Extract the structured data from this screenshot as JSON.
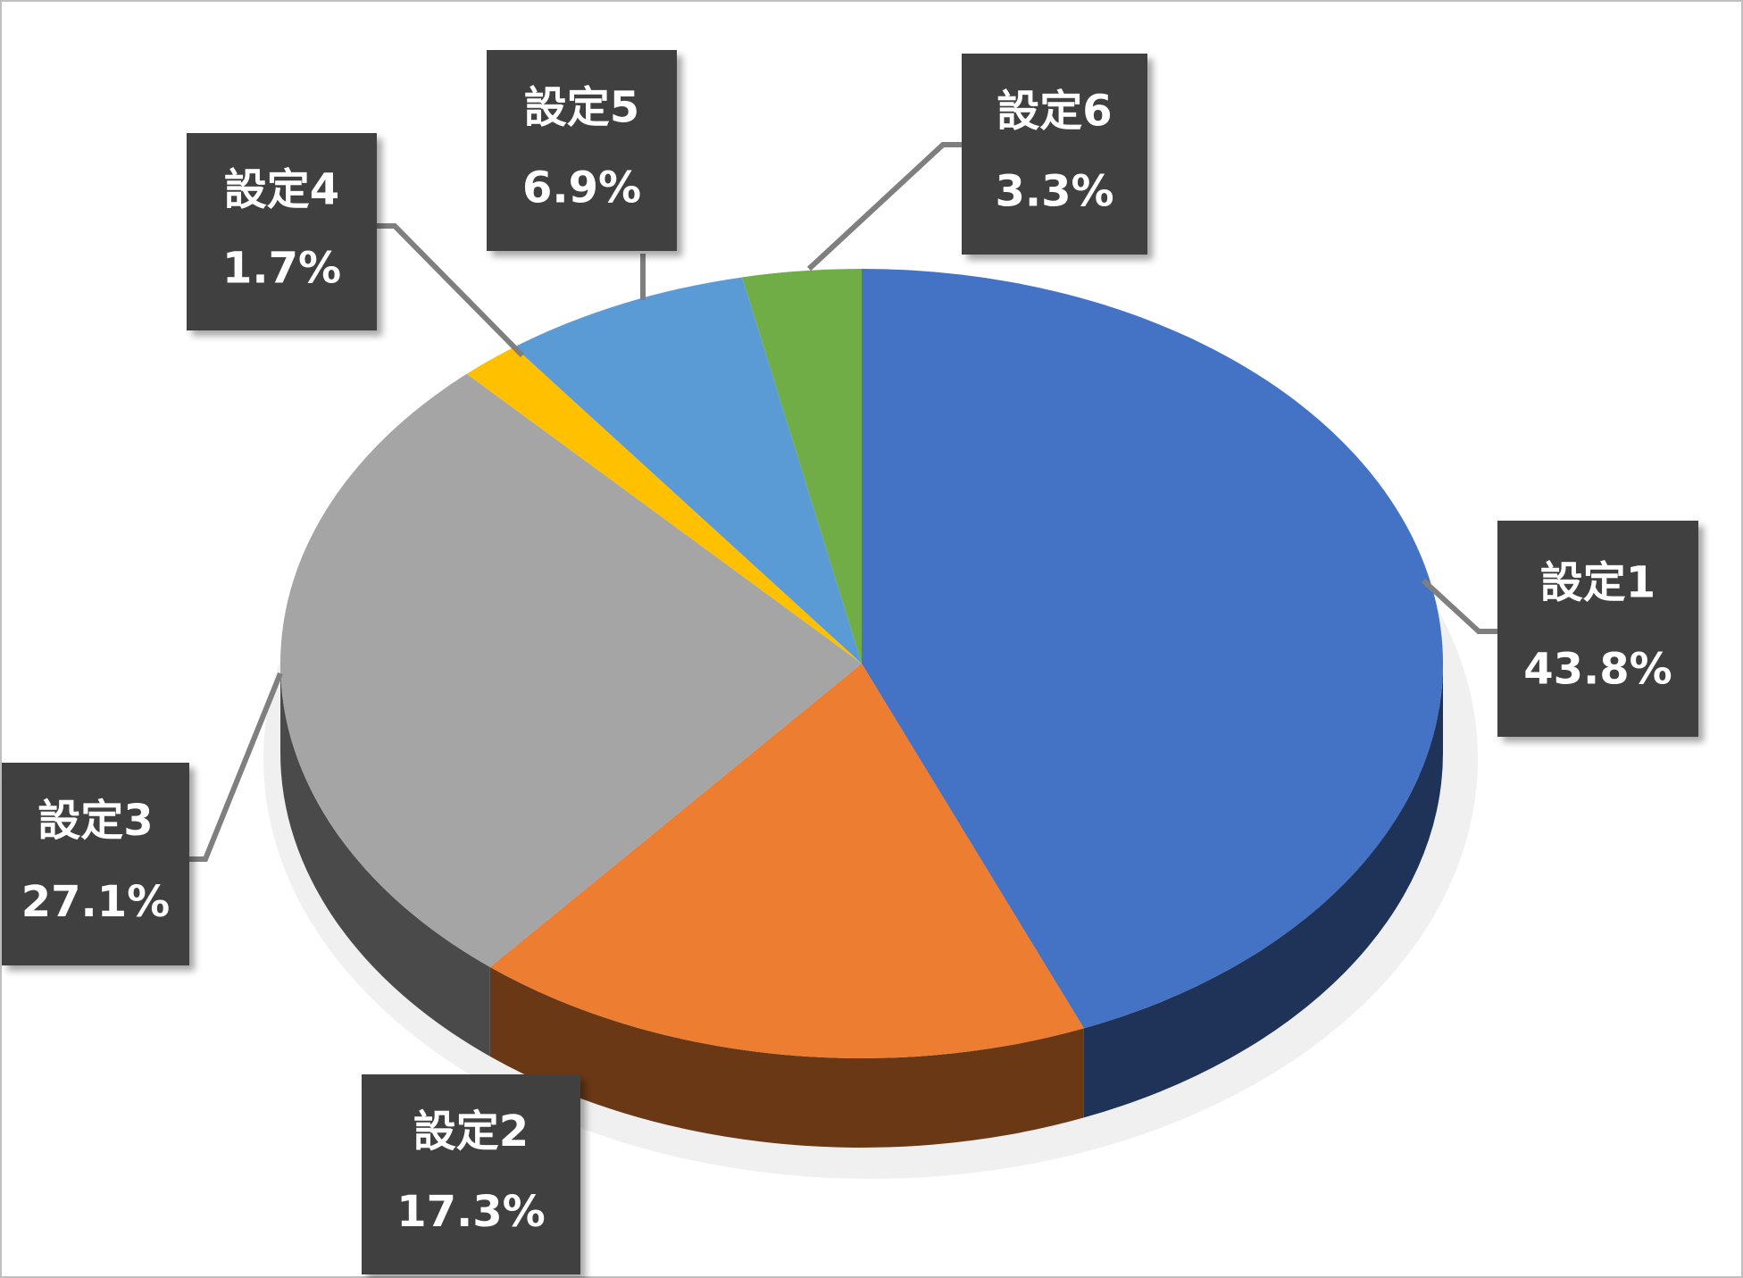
{
  "chart_data": {
    "type": "pie",
    "categories": [
      "設定1",
      "設定2",
      "設定3",
      "設定4",
      "設定5",
      "設定6"
    ],
    "values": [
      43.8,
      17.3,
      27.1,
      1.7,
      6.9,
      3.3
    ],
    "value_labels": [
      "43.8%",
      "17.3%",
      "27.1%",
      "1.7%",
      "6.9%",
      "3.3%"
    ],
    "colors": [
      "#4472c4",
      "#ed7d31",
      "#a5a5a5",
      "#ffc000",
      "#5b9bd5",
      "#70ad47"
    ]
  }
}
